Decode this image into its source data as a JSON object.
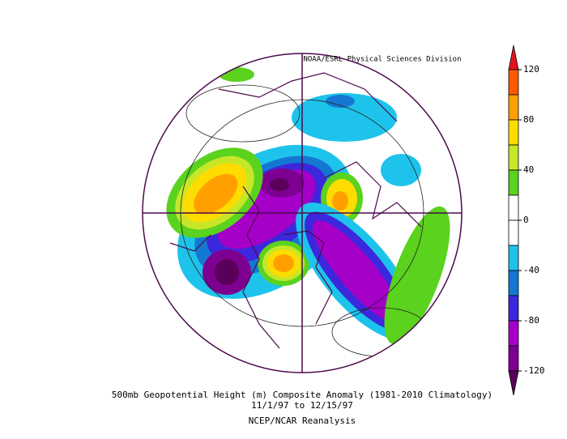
{
  "credit": "NOAA/ESRL Physical Sciences Division",
  "title": "500mb Geopotential Height (m) Composite Anomaly (1981-2010 Climatology)",
  "dates": "11/1/97  to 12/15/97",
  "source": "NCEP/NCAR Reanalysis",
  "colorbar": {
    "ticks": [
      120,
      80,
      40,
      0,
      -40,
      -80,
      -120
    ],
    "colors": [
      "#e6141e",
      "#ff5a00",
      "#ffa000",
      "#ffdc00",
      "#c8e628",
      "#5ad21e",
      "#ffffff",
      "#ffffff",
      "#1ec3eb",
      "#1478d2",
      "#3c28dc",
      "#a500c8",
      "#7d0091",
      "#5a005a"
    ]
  }
}
